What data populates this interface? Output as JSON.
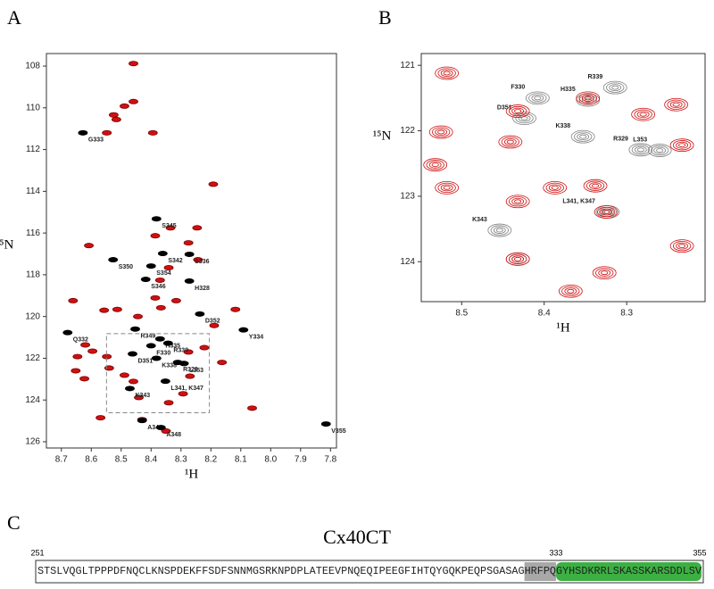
{
  "panel_labels": [
    "A",
    "B",
    "C"
  ],
  "chart_data": [
    {
      "type": "scatter",
      "xlabel": "¹H",
      "ylabel": "¹⁵N",
      "xlim": [
        8.75,
        7.78
      ],
      "ylim": [
        107.4,
        126.3
      ],
      "xticks": [
        8.7,
        8.6,
        8.5,
        8.4,
        8.3,
        8.2,
        8.1,
        {
          "value": 8,
          "label": "8.0"
        },
        7.9,
        7.8
      ],
      "yticks": [
        108,
        110,
        112,
        114,
        116,
        118,
        120,
        122,
        124,
        126
      ],
      "series": [
        {
          "color": "#d01010",
          "marker": "filled",
          "x": [
            8.459,
            8.459,
            8.489,
            8.525,
            8.516,
            8.548,
            8.394,
            8.192,
            8.608,
            8.335,
            8.386,
            8.246,
            8.275,
            8.341,
            8.243,
            8.37,
            8.661,
            8.386,
            8.367,
            8.444,
            8.316,
            8.513,
            8.557,
            8.189,
            8.118,
            8.62,
            8.596,
            8.646,
            8.548,
            8.54,
            8.652,
            8.623,
            8.489,
            8.459,
            8.275,
            8.222,
            8.163,
            8.293,
            8.441,
            8.569,
            8.341,
            8.43,
            8.35,
            8.062,
            8.27
          ],
          "values": [
            107.88,
            109.7,
            109.92,
            110.34,
            110.56,
            111.2,
            111.2,
            113.66,
            116.6,
            115.75,
            116.13,
            115.75,
            116.47,
            117.66,
            117.28,
            118.26,
            119.24,
            119.11,
            119.58,
            120.0,
            119.24,
            119.66,
            119.7,
            120.43,
            119.66,
            121.36,
            121.66,
            121.92,
            121.92,
            122.47,
            122.6,
            122.98,
            122.81,
            123.11,
            121.7,
            121.49,
            122.2,
            123.7,
            123.88,
            124.85,
            124.13,
            124.94,
            125.49,
            124.39,
            122.86
          ]
        },
        {
          "color": "#000000",
          "marker": "filled",
          "x": [
            8.628,
            8.382,
            8.361,
            8.272,
            8.527,
            8.4,
            8.418,
            8.272,
            8.237,
            8.091,
            8.679,
            8.453,
            8.4,
            8.37,
            8.343,
            8.462,
            8.382,
            8.311,
            8.29,
            8.352,
            8.471,
            8.43,
            8.367,
            7.815
          ],
          "values": [
            111.2,
            115.32,
            116.98,
            117.02,
            117.28,
            117.58,
            118.22,
            118.3,
            119.88,
            120.64,
            120.77,
            120.6,
            121.4,
            121.07,
            121.28,
            121.79,
            122.0,
            122.2,
            122.25,
            123.1,
            123.45,
            124.98,
            125.32,
            125.15
          ],
          "labels": [
            "G333",
            "S345",
            "S342",
            "S336",
            "S350",
            "S354",
            "S346",
            "H328",
            "D352",
            "Y334",
            "Q332",
            "R349",
            "F330",
            "H335",
            "R339",
            "D351",
            "K338",
            "R329",
            "L353",
            "L341, K347",
            "K343",
            "A344",
            "A348",
            "V355"
          ]
        }
      ]
    },
    {
      "type": "scatter",
      "xlabel": "¹H",
      "ylabel": "¹⁵N",
      "xlim": [
        8.549,
        8.205
      ],
      "ylim": [
        120.82,
        124.61
      ],
      "xticks": [
        8.5,
        8.4,
        8.3
      ],
      "yticks": [
        121,
        122,
        123,
        124
      ],
      "series": [
        {
          "color": "#808080",
          "marker": "contour",
          "x": [
            8.314,
            8.347,
            8.408,
            8.424,
            8.353,
            8.283,
            8.26,
            8.323,
            8.454,
            8.432
          ],
          "values": [
            121.34,
            121.53,
            121.5,
            121.81,
            122.09,
            122.29,
            122.3,
            123.24,
            123.52,
            123.96
          ],
          "labels": [
            "R339",
            "H335",
            "F330",
            "D351",
            "K338",
            "R329",
            "L353",
            "L341, K347",
            "K343",
            null
          ]
        },
        {
          "color": "#d01010",
          "marker": "contour",
          "x": [
            8.518,
            8.525,
            8.532,
            8.518,
            8.432,
            8.441,
            8.432,
            8.387,
            8.338,
            8.325,
            8.432,
            8.327,
            8.368,
            8.233,
            8.233,
            8.347,
            8.28,
            8.24
          ],
          "values": [
            121.12,
            122.02,
            122.52,
            122.87,
            121.7,
            122.17,
            123.08,
            122.87,
            122.84,
            123.24,
            123.96,
            124.17,
            124.45,
            123.76,
            122.22,
            121.5,
            121.75,
            121.6
          ]
        }
      ]
    }
  ],
  "sequence": {
    "title": "Cx40CT",
    "start": 251,
    "mid": 333,
    "end": 355,
    "segments": [
      "STSLVQGLTPPPDFNQCLKNSPDEKFFSDFSNNMGSRKNPDPLATEEVPNQEQIPEEGFIHTQYGQKPEQPSGASAG",
      "HRFPQ",
      "GYHSDKRRLSKASSKARSDDLSV"
    ]
  }
}
